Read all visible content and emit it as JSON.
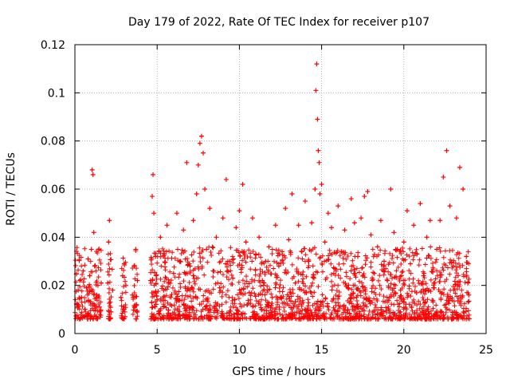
{
  "chart_data": {
    "type": "scatter",
    "title": "Day 179 of 2022, Rate Of TEC Index for receiver p107",
    "xlabel": "GPS time / hours",
    "ylabel": "ROTI / TECUs",
    "xlim": [
      0,
      25
    ],
    "ylim": [
      0,
      0.12
    ],
    "xticks": [
      0,
      5,
      10,
      15,
      20,
      25
    ],
    "yticks": [
      0,
      0.02,
      0.04,
      0.06,
      0.08,
      0.1,
      0.12
    ],
    "xtick_labels": [
      "0",
      "5",
      "10",
      "15",
      "20",
      "25"
    ],
    "ytick_labels": [
      "0",
      "0.02",
      "0.04",
      "0.06",
      "0.08",
      "0.1",
      "0.12"
    ],
    "grid": true,
    "marker": "+",
    "series": [
      {
        "color": "#ff0000",
        "points": [
          [
            0.1,
            0.012
          ],
          [
            0.2,
            0.018
          ],
          [
            0.3,
            0.022
          ],
          [
            0.4,
            0.015
          ],
          [
            0.5,
            0.026
          ],
          [
            0.6,
            0.01
          ],
          [
            0.7,
            0.019
          ],
          [
            0.8,
            0.031
          ],
          [
            0.9,
            0.024
          ],
          [
            1.0,
            0.035
          ],
          [
            1.05,
            0.068
          ],
          [
            1.1,
            0.066
          ],
          [
            1.15,
            0.042
          ],
          [
            1.2,
            0.028
          ],
          [
            1.3,
            0.015
          ],
          [
            1.4,
            0.02
          ],
          [
            1.5,
            0.011
          ],
          [
            1.6,
            0.021
          ],
          [
            2.0,
            0.021
          ],
          [
            2.05,
            0.038
          ],
          [
            2.1,
            0.047
          ],
          [
            2.15,
            0.013
          ],
          [
            2.2,
            0.009
          ],
          [
            2.3,
            0.018
          ],
          [
            2.8,
            0.015
          ],
          [
            2.9,
            0.024
          ],
          [
            3.0,
            0.029
          ],
          [
            3.05,
            0.007
          ],
          [
            3.1,
            0.02
          ],
          [
            3.5,
            0.016
          ],
          [
            3.6,
            0.028
          ],
          [
            3.7,
            0.035
          ],
          [
            3.75,
            0.012
          ],
          [
            3.8,
            0.022
          ],
          [
            4.6,
            0.022
          ],
          [
            4.7,
            0.057
          ],
          [
            4.75,
            0.066
          ],
          [
            4.8,
            0.05
          ],
          [
            4.9,
            0.032
          ],
          [
            5.0,
            0.014
          ],
          [
            5.2,
            0.04
          ],
          [
            5.4,
            0.018
          ],
          [
            5.6,
            0.045
          ],
          [
            5.8,
            0.012
          ],
          [
            6.0,
            0.025
          ],
          [
            6.2,
            0.05
          ],
          [
            6.4,
            0.03
          ],
          [
            6.6,
            0.043
          ],
          [
            6.8,
            0.071
          ],
          [
            7.0,
            0.028
          ],
          [
            7.2,
            0.047
          ],
          [
            7.4,
            0.058
          ],
          [
            7.5,
            0.07
          ],
          [
            7.6,
            0.079
          ],
          [
            7.7,
            0.082
          ],
          [
            7.8,
            0.075
          ],
          [
            7.9,
            0.06
          ],
          [
            8.0,
            0.035
          ],
          [
            8.2,
            0.052
          ],
          [
            8.4,
            0.026
          ],
          [
            8.6,
            0.04
          ],
          [
            8.8,
            0.019
          ],
          [
            9.0,
            0.048
          ],
          [
            9.2,
            0.064
          ],
          [
            9.4,
            0.03
          ],
          [
            9.6,
            0.023
          ],
          [
            9.8,
            0.044
          ],
          [
            10.0,
            0.051
          ],
          [
            10.2,
            0.062
          ],
          [
            10.4,
            0.038
          ],
          [
            10.6,
            0.017
          ],
          [
            10.8,
            0.048
          ],
          [
            11.0,
            0.033
          ],
          [
            11.2,
            0.04
          ],
          [
            11.4,
            0.022
          ],
          [
            11.6,
            0.03
          ],
          [
            11.8,
            0.036
          ],
          [
            12.0,
            0.015
          ],
          [
            12.2,
            0.045
          ],
          [
            12.4,
            0.028
          ],
          [
            12.6,
            0.034
          ],
          [
            12.8,
            0.052
          ],
          [
            13.0,
            0.039
          ],
          [
            13.2,
            0.058
          ],
          [
            13.4,
            0.021
          ],
          [
            13.6,
            0.045
          ],
          [
            13.8,
            0.034
          ],
          [
            14.0,
            0.055
          ],
          [
            14.2,
            0.03
          ],
          [
            14.4,
            0.046
          ],
          [
            14.6,
            0.06
          ],
          [
            14.65,
            0.101
          ],
          [
            14.7,
            0.112
          ],
          [
            14.75,
            0.089
          ],
          [
            14.8,
            0.076
          ],
          [
            14.85,
            0.071
          ],
          [
            14.9,
            0.058
          ],
          [
            15.0,
            0.062
          ],
          [
            15.2,
            0.038
          ],
          [
            15.4,
            0.05
          ],
          [
            15.6,
            0.044
          ],
          [
            15.8,
            0.027
          ],
          [
            16.0,
            0.053
          ],
          [
            16.2,
            0.034
          ],
          [
            16.4,
            0.043
          ],
          [
            16.6,
            0.019
          ],
          [
            16.8,
            0.056
          ],
          [
            17.0,
            0.046
          ],
          [
            17.2,
            0.032
          ],
          [
            17.4,
            0.048
          ],
          [
            17.6,
            0.057
          ],
          [
            17.8,
            0.059
          ],
          [
            18.0,
            0.041
          ],
          [
            18.2,
            0.025
          ],
          [
            18.4,
            0.036
          ],
          [
            18.6,
            0.047
          ],
          [
            18.8,
            0.03
          ],
          [
            19.0,
            0.022
          ],
          [
            19.2,
            0.06
          ],
          [
            19.4,
            0.042
          ],
          [
            19.6,
            0.035
          ],
          [
            19.8,
            0.018
          ],
          [
            20.0,
            0.038
          ],
          [
            20.2,
            0.051
          ],
          [
            20.4,
            0.029
          ],
          [
            20.6,
            0.045
          ],
          [
            20.8,
            0.033
          ],
          [
            21.0,
            0.054
          ],
          [
            21.2,
            0.024
          ],
          [
            21.4,
            0.04
          ],
          [
            21.6,
            0.047
          ],
          [
            21.8,
            0.019
          ],
          [
            22.0,
            0.035
          ],
          [
            22.2,
            0.047
          ],
          [
            22.4,
            0.065
          ],
          [
            22.6,
            0.076
          ],
          [
            22.8,
            0.053
          ],
          [
            23.0,
            0.028
          ],
          [
            23.2,
            0.048
          ],
          [
            23.4,
            0.069
          ],
          [
            23.6,
            0.06
          ],
          [
            23.8,
            0.032
          ],
          [
            23.9,
            0.021
          ],
          [
            23.95,
            0.016
          ]
        ]
      }
    ]
  }
}
